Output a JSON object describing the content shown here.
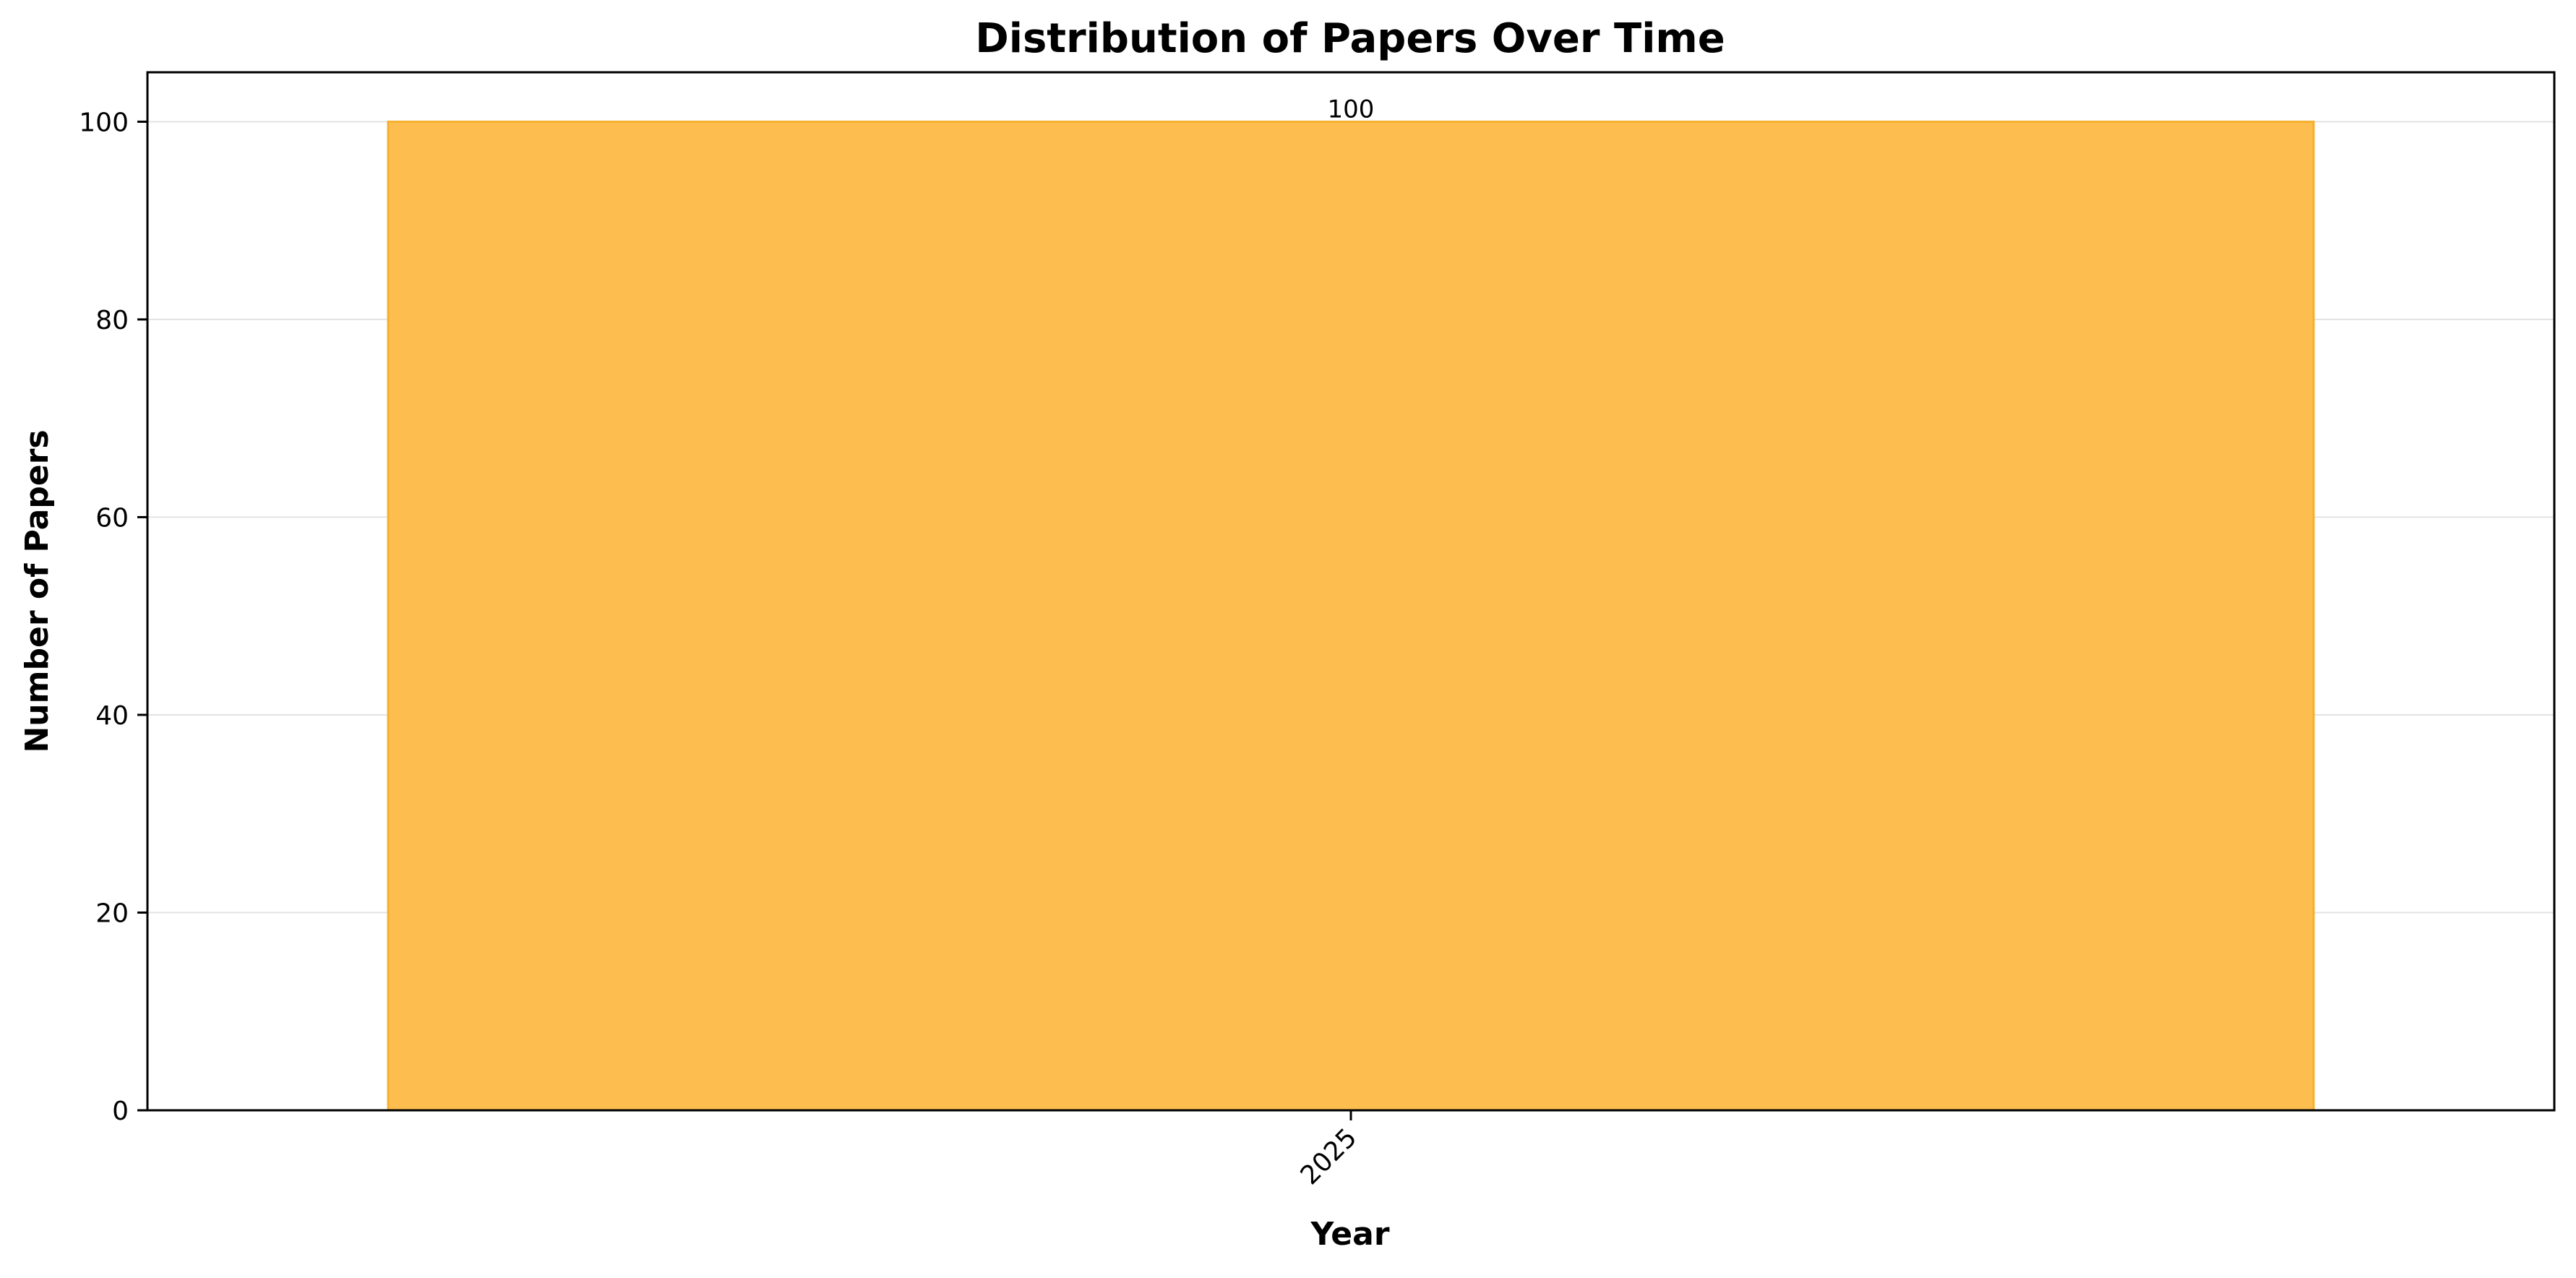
{
  "chart_data": {
    "type": "bar",
    "title": "Distribution of Papers Over Time",
    "xlabel": "Year",
    "ylabel": "Number of Papers",
    "categories": [
      "2025"
    ],
    "values": [
      100
    ],
    "data_labels": [
      "100"
    ],
    "ylim": [
      0,
      105
    ],
    "yticks": [
      0,
      20,
      40,
      60,
      80,
      100
    ],
    "grid": "y",
    "bar_color": "#fdbe4f",
    "bar_edge_color": "#f5b030",
    "legend": "none"
  }
}
